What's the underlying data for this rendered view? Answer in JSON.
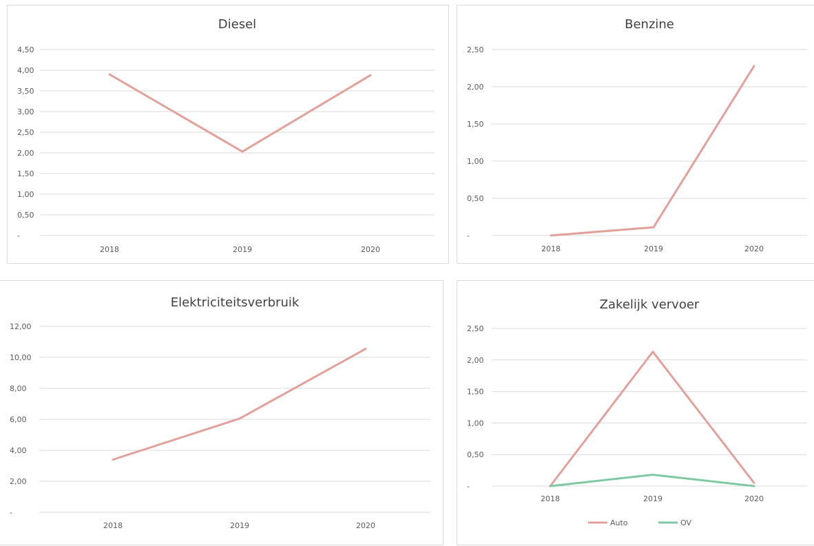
{
  "colors": {
    "auto": "#e3a09b",
    "ov": "#7ec9a0",
    "grid": "#d9d9d9"
  },
  "chart_data": [
    {
      "type": "line",
      "title": "Diesel",
      "categories": [
        "2018",
        "2019",
        "2020"
      ],
      "ylim": [
        0,
        4.5
      ],
      "yticks": [
        "-",
        "0,50",
        "1,00",
        "1,50",
        "2,00",
        "2,50",
        "3,00",
        "3,50",
        "4,00",
        "4,50"
      ],
      "grid": true,
      "series": [
        {
          "values": [
            3.9,
            2.03,
            3.88
          ],
          "color": "#e3a09b"
        }
      ]
    },
    {
      "type": "line",
      "title": "Benzine",
      "categories": [
        "2018",
        "2019",
        "2020"
      ],
      "ylim": [
        0,
        2.5
      ],
      "yticks": [
        "-",
        "0,50",
        "1,00",
        "1,50",
        "2,00",
        "2,50"
      ],
      "grid": true,
      "series": [
        {
          "values": [
            0.0,
            0.11,
            2.28
          ],
          "color": "#e3a09b"
        }
      ]
    },
    {
      "type": "line",
      "title": "Elektriciteitsverbruik",
      "categories": [
        "2018",
        "2019",
        "2020"
      ],
      "ylim": [
        0,
        12
      ],
      "yticks": [
        "-",
        "2,00",
        "4,00",
        "6,00",
        "8,00",
        "10,00",
        "12,00"
      ],
      "grid": true,
      "series": [
        {
          "values": [
            3.4,
            6.05,
            10.55
          ],
          "color": "#e3a09b"
        }
      ]
    },
    {
      "type": "line",
      "title": "Zakelijk vervoer",
      "categories": [
        "2018",
        "2019",
        "2020"
      ],
      "ylim": [
        0,
        2.5
      ],
      "yticks": [
        "-",
        "0,50",
        "1,00",
        "1,50",
        "2,00",
        "2,50"
      ],
      "grid": true,
      "legend": "bottom",
      "series": [
        {
          "name": "Auto",
          "values": [
            0.0,
            2.13,
            0.05
          ],
          "color": "#e3a09b"
        },
        {
          "name": "OV",
          "values": [
            0.0,
            0.18,
            0.0
          ],
          "color": "#7ec9a0"
        }
      ]
    }
  ]
}
